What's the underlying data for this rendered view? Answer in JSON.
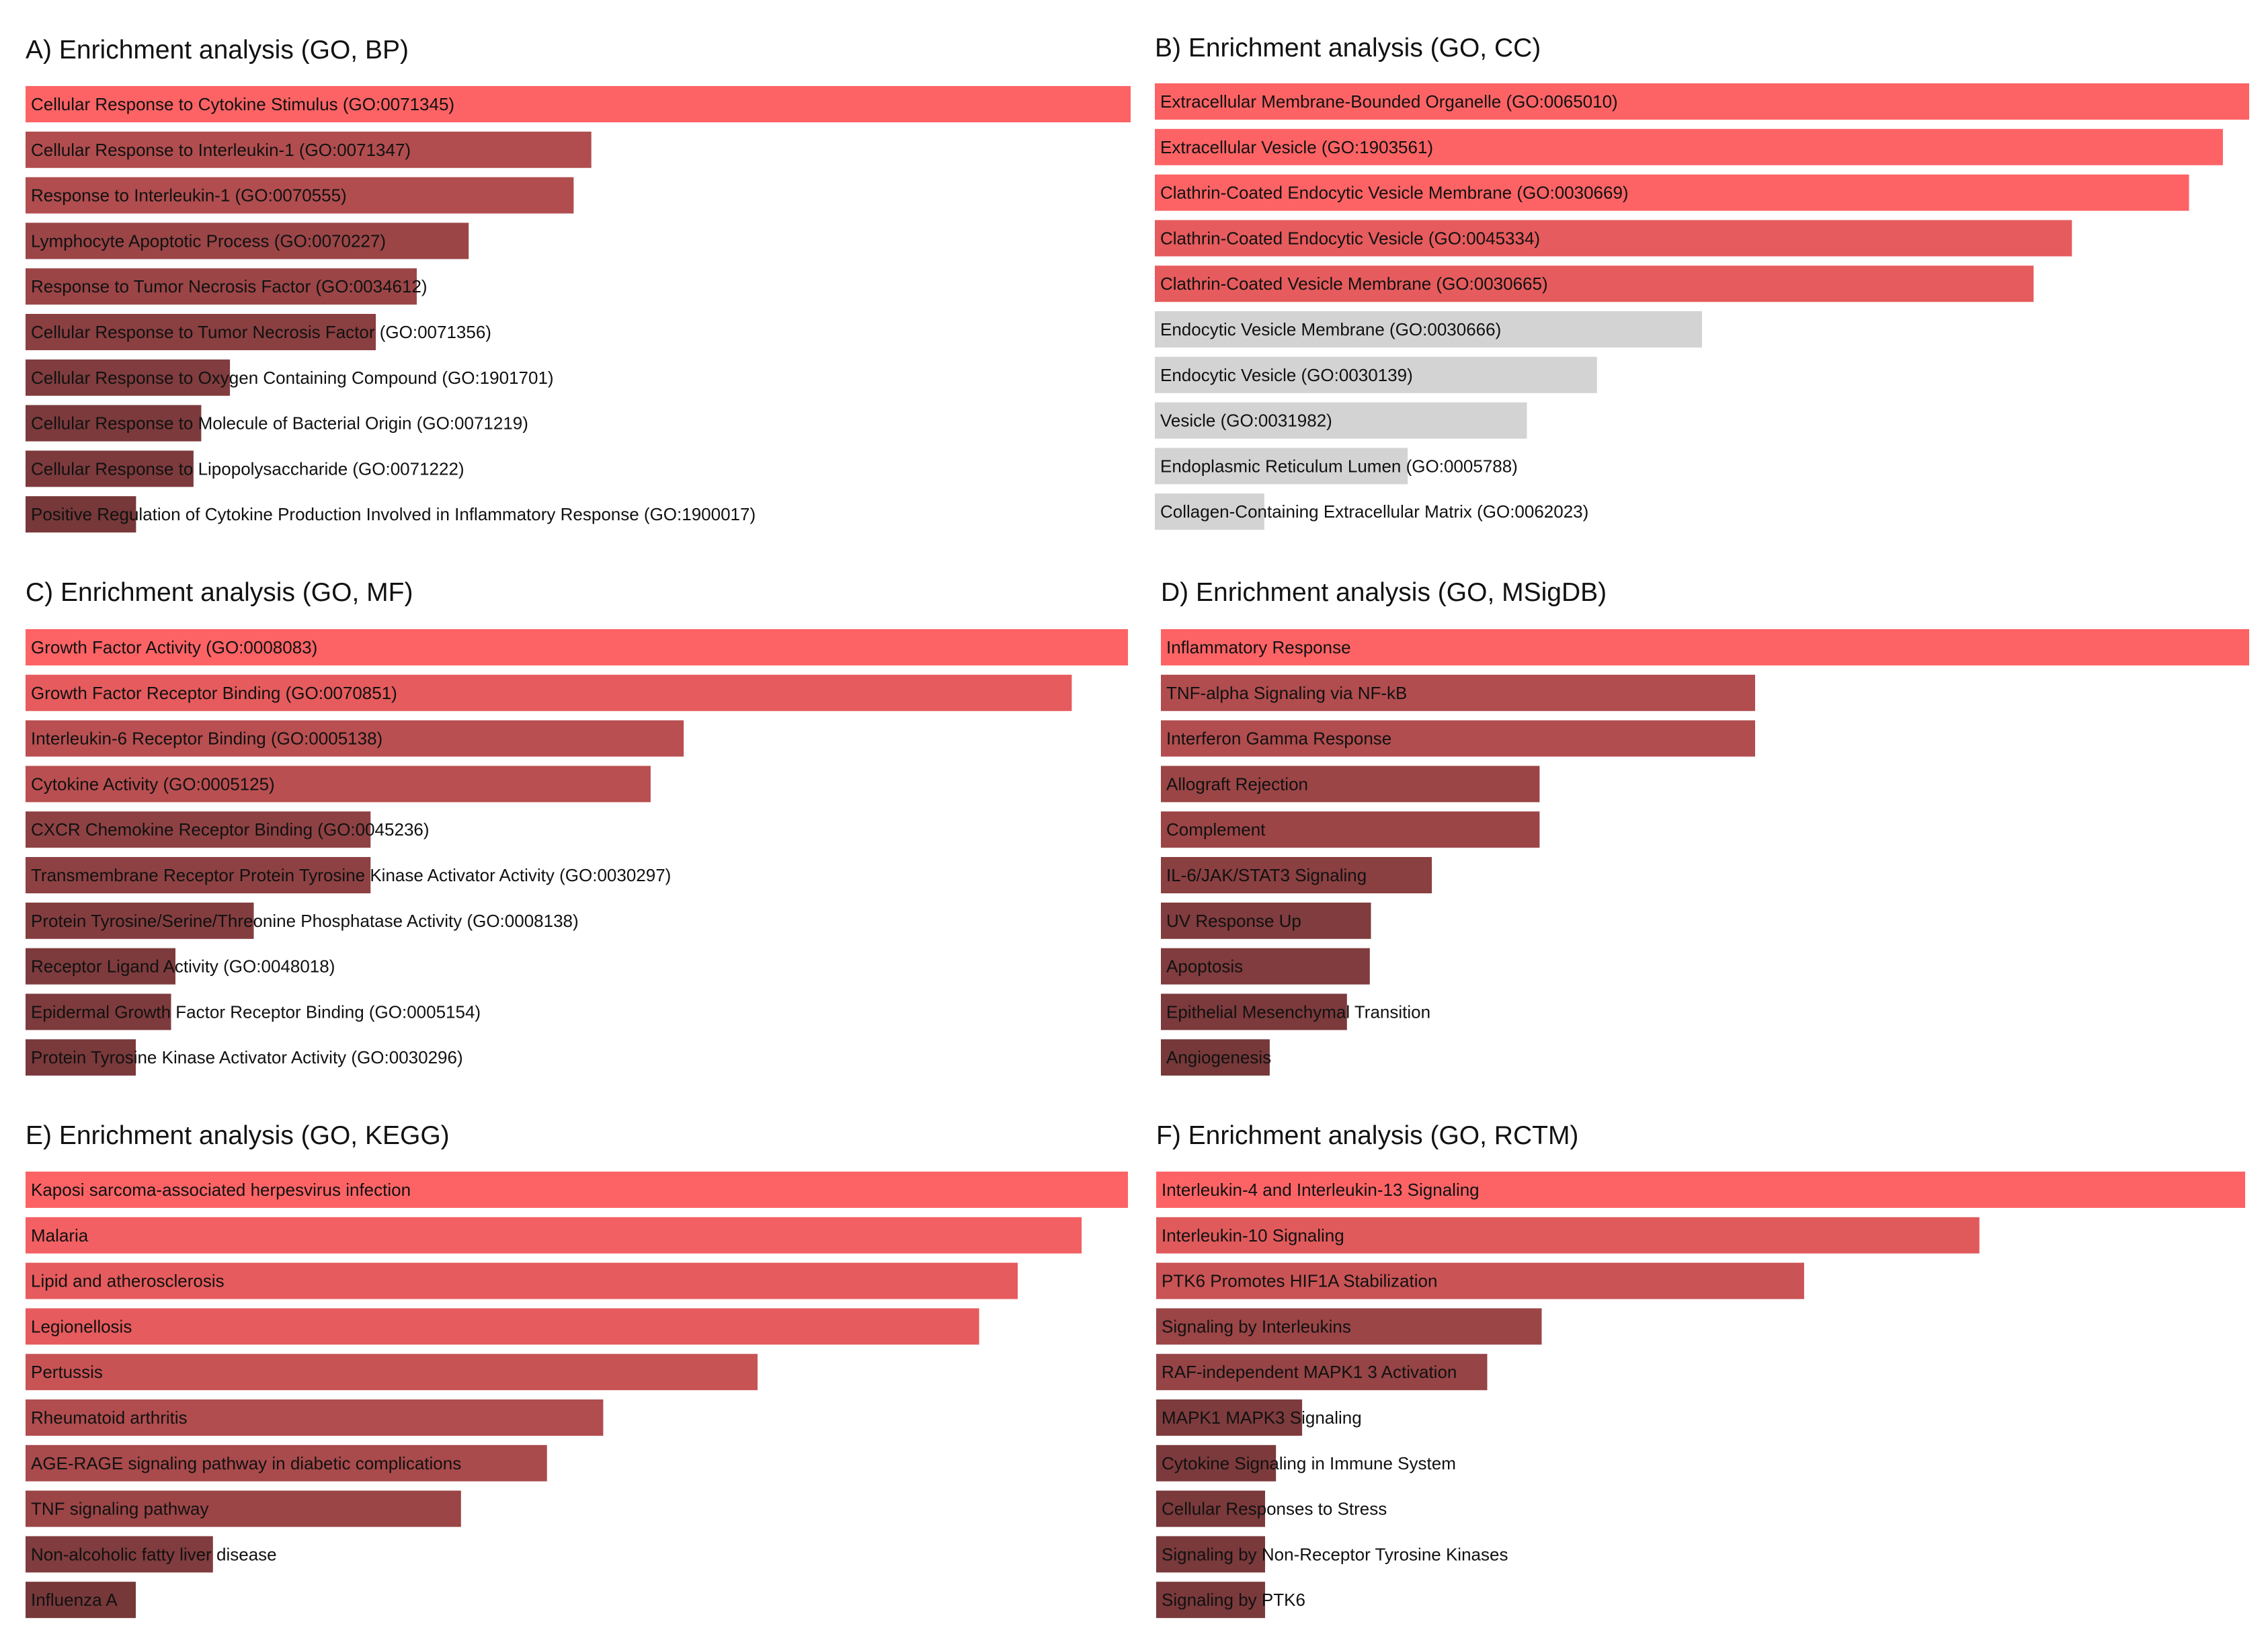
{
  "chart_data": [
    {
      "type": "bar",
      "orientation": "horizontal",
      "title": "A) Enrichment analysis (GO, BP)",
      "xlabel": "",
      "ylabel": "",
      "categories": [
        "Cellular Response to Cytokine Stimulus (GO:0071345)",
        "Cellular Response to Interleukin-1 (GO:0071347)",
        "Response to Interleukin-1 (GO:0070555)",
        "Lymphocyte Apoptotic Process (GO:0070227)",
        "Response to Tumor Necrosis Factor (GO:0034612)",
        "Cellular Response to Tumor Necrosis Factor (GO:0071356)",
        "Cellular Response to Oxygen Containing Compound (GO:1901701)",
        "Cellular Response to Molecule of Bacterial Origin (GO:0071219)",
        "Cellular Response to Lipopolysaccharide (GO:0071222)",
        "Positive Regulation of Cytokine Production Involved in Inflammatory Response (GO:1900017)"
      ],
      "values": [
        1.0,
        0.512,
        0.496,
        0.401,
        0.354,
        0.317,
        0.185,
        0.159,
        0.152,
        0.1
      ],
      "colors": [
        "#fd6365",
        "#b14d4f",
        "#b14d4f",
        "#9b4547",
        "#9b4547",
        "#8a3f41",
        "#803c3e",
        "#7c3a3c",
        "#7c3a3c",
        "#763839"
      ],
      "xlim": [
        0,
        1
      ],
      "grid": false,
      "legend": "none"
    },
    {
      "type": "bar",
      "orientation": "horizontal",
      "title": "B) Enrichment analysis (GO, CC)",
      "xlabel": "",
      "ylabel": "",
      "categories": [
        "Extracellular Membrane-Bounded Organelle (GO:0065010)",
        "Extracellular Vesicle (GO:1903561)",
        "Clathrin-Coated Endocytic Vesicle Membrane (GO:0030669)",
        "Clathrin-Coated Endocytic Vesicle (GO:0045334)",
        "Clathrin-Coated Vesicle Membrane (GO:0030665)",
        "Endocytic Vesicle Membrane (GO:0030666)",
        "Endocytic Vesicle (GO:0030139)",
        "Vesicle (GO:0031982)",
        "Endoplasmic Reticulum Lumen (GO:0005788)",
        "Collagen-Containing Extracellular Matrix (GO:0062023)"
      ],
      "values": [
        1.0,
        0.976,
        0.945,
        0.838,
        0.803,
        0.5,
        0.404,
        0.34,
        0.231,
        0.1
      ],
      "colors": [
        "#fd6365",
        "#fd6365",
        "#fd6365",
        "#e65b5d",
        "#e65b5d",
        "#d3d3d3",
        "#d3d3d3",
        "#d3d3d3",
        "#d3d3d3",
        "#d3d3d3"
      ],
      "xlim": [
        0,
        1
      ],
      "grid": false,
      "legend": "none"
    },
    {
      "type": "bar",
      "orientation": "horizontal",
      "title": "C) Enrichment analysis (GO, MF)",
      "xlabel": "",
      "ylabel": "",
      "categories": [
        "Growth Factor Activity (GO:0008083)",
        "Growth Factor Receptor Binding (GO:0070851)",
        "Interleukin-6 Receptor Binding (GO:0005138)",
        "Cytokine Activity (GO:0005125)",
        "CXCR Chemokine Receptor Binding (GO:0045236)",
        "Transmembrane Receptor Protein Tyrosine Kinase Activator Activity (GO:0030297)",
        "Protein Tyrosine/Serine/Threonine Phosphatase Activity (GO:0008138)",
        "Receptor Ligand Activity (GO:0048018)",
        "Epidermal Growth Factor Receptor Binding (GO:0005154)",
        "Protein Tyrosine Kinase Activator Activity (GO:0030296)"
      ],
      "values": [
        1.0,
        0.949,
        0.597,
        0.567,
        0.313,
        0.313,
        0.207,
        0.136,
        0.132,
        0.1
      ],
      "colors": [
        "#fd6365",
        "#e65b5d",
        "#b94f51",
        "#b94f51",
        "#8e4143",
        "#8e4143",
        "#843d3f",
        "#7e3b3d",
        "#7e3b3d",
        "#7a393b"
      ],
      "xlim": [
        0,
        1
      ],
      "grid": false,
      "legend": "none"
    },
    {
      "type": "bar",
      "orientation": "horizontal",
      "title": "D) Enrichment analysis (GO, MSigDB)",
      "xlabel": "",
      "ylabel": "",
      "categories": [
        "Inflammatory Response",
        "TNF-alpha Signaling via NF-kB",
        "Interferon Gamma Response",
        "Allograft Rejection",
        "Complement",
        "IL-6/JAK/STAT3 Signaling",
        "UV Response Up",
        "Apoptosis",
        "Epithelial Mesenchymal Transition",
        "Angiogenesis"
      ],
      "values": [
        1.0,
        0.546,
        0.546,
        0.348,
        0.348,
        0.249,
        0.193,
        0.192,
        0.171,
        0.1
      ],
      "colors": [
        "#fd6365",
        "#b14d4f",
        "#b14d4f",
        "#9b4547",
        "#9b4547",
        "#8a3f41",
        "#803c3e",
        "#803c3e",
        "#7c3a3c",
        "#763839"
      ],
      "xlim": [
        0,
        1
      ],
      "grid": false,
      "legend": "none"
    },
    {
      "type": "bar",
      "orientation": "horizontal",
      "title": "E) Enrichment analysis (GO, KEGG)",
      "xlabel": "",
      "ylabel": "",
      "categories": [
        "Kaposi sarcoma-associated herpesvirus infection",
        "Malaria",
        "Lipid and atherosclerosis",
        "Legionellosis",
        "Pertussis",
        "Rheumatoid arthritis",
        "AGE-RAGE signaling pathway in diabetic complications",
        "TNF signaling pathway",
        "Non-alcoholic fatty liver disease",
        "Influenza A"
      ],
      "values": [
        1.0,
        0.958,
        0.9,
        0.865,
        0.664,
        0.524,
        0.473,
        0.395,
        0.17,
        0.1
      ],
      "colors": [
        "#fd6365",
        "#f36063",
        "#e65b5d",
        "#e65b5d",
        "#c85355",
        "#b14d4f",
        "#a94a4c",
        "#9b4547",
        "#803c3e",
        "#763839"
      ],
      "xlim": [
        0,
        1
      ],
      "grid": false,
      "legend": "none"
    },
    {
      "type": "bar",
      "orientation": "horizontal",
      "title": "F) Enrichment analysis (GO, RCTM)",
      "xlabel": "",
      "ylabel": "",
      "categories": [
        "Interleukin-4 and Interleukin-13 Signaling",
        "Interleukin-10 Signaling",
        "PTK6 Promotes HIF1A Stabilization",
        "Signaling by Interleukins",
        "RAF-independent MAPK1 3 Activation",
        "MAPK1 MAPK3 Signaling",
        "Cytokine Signaling in Immune System",
        "Cellular Responses to Stress",
        "Signaling by Non-Receptor Tyrosine Kinases",
        "Signaling by PTK6"
      ],
      "values": [
        1.0,
        0.756,
        0.595,
        0.354,
        0.304,
        0.134,
        0.11,
        0.1,
        0.1,
        0.1
      ],
      "colors": [
        "#fd6365",
        "#e05a5c",
        "#c95355",
        "#9b4547",
        "#964446",
        "#7e3b3d",
        "#7c3a3c",
        "#7a393b",
        "#7a393b",
        "#7a393b"
      ],
      "xlim": [
        0,
        1
      ],
      "grid": false,
      "legend": "none"
    }
  ]
}
